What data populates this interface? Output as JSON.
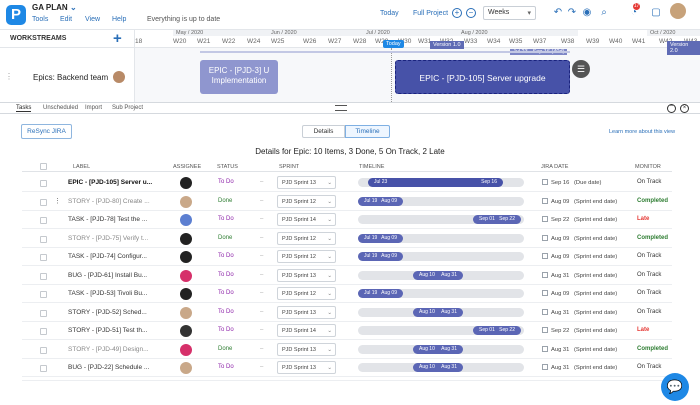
{
  "app": {
    "logo_letter": "P",
    "project": "GA PLAN",
    "project_caret": "⌄",
    "menus": [
      "Tools",
      "Edit",
      "View",
      "Help"
    ],
    "status": "Everything is up to date",
    "today_btn": "Today",
    "full_project_btn": "Full Project",
    "zoom_in": "+",
    "zoom_out": "−",
    "scale_select": "Weeks",
    "notif_count": "17"
  },
  "colors": {
    "accent": "#2a6fb8",
    "bar_dark": "#4752a8",
    "bar_light": "#8f96cf",
    "timeline_bar": "#5b66b5",
    "status_todo": "#8e24aa",
    "status_done": "#2e7d32",
    "late": "#e53935"
  },
  "gantt": {
    "workstreams_title": "WORKSTREAMS",
    "add": "+",
    "months": [
      {
        "label": "May / 2020"
      },
      {
        "label": "Jun / 2020"
      },
      {
        "label": "Jul / 2020"
      },
      {
        "label": "Aug / 2020"
      },
      {
        "label": "Oct / 2020"
      }
    ],
    "weeks": [
      "18",
      "W20",
      "W21",
      "W22",
      "W24",
      "W25",
      "W26",
      "W27",
      "W28",
      "W29",
      "W30",
      "W31",
      "W32",
      "W33",
      "W34",
      "W35",
      "W37",
      "W38",
      "W39",
      "W40",
      "W41",
      "W42",
      "W43"
    ],
    "today_marker": "Today",
    "version1": "Version 1.0",
    "version2": "Version 2.0",
    "range_label": "Jul 23 · Sep 16 (40d)",
    "epic_label": "Epics: Backend team",
    "bar_impl_line1": "EPIC - [PJD-3] U",
    "bar_impl_line2": "Implementation",
    "bar_server": "EPIC - [PJD-105] Server upgrade"
  },
  "tabs": [
    "Tasks",
    "Unscheduled",
    "Import",
    "Sub Project"
  ],
  "details": {
    "resync": "ReSync JIRA",
    "seg_details": "Details",
    "seg_timeline": "Timeline",
    "learn_more": "Learn more about this view",
    "heading": "Details for Epic: 10 Items, 3 Done, 5 On Track, 2 Late",
    "columns": [
      "LABEL",
      "ASSIGNEE",
      "STATUS",
      "SPRINT",
      "TIMELINE",
      "JIRA DATE",
      "MONITOR"
    ]
  },
  "rows": [
    {
      "label": "EPIC - [PJD-105] Server u...",
      "status": "To Do",
      "sprint": "PJD Sprint 13",
      "start": "Jul 23",
      "end": "Sep 16",
      "jira": "Sep 16",
      "jira_note": "(Due date)",
      "monitor": "On Track"
    },
    {
      "label": "STORY - [PJD-80] Create ...",
      "status": "Done",
      "sprint": "PJD Sprint 12",
      "start": "Jul 19",
      "end": "Aug 09",
      "jira": "Aug 09",
      "jira_note": "(Sprint end date)",
      "monitor": "Completed"
    },
    {
      "label": "TASK - [PJD-78] Test the ...",
      "status": "To Do",
      "sprint": "PJD Sprint 14",
      "start": "Sep 01",
      "end": "Sep 22",
      "jira": "Sep 22",
      "jira_note": "(Sprint end date)",
      "monitor": "Late"
    },
    {
      "label": "STORY - [PJD-75] Verify t...",
      "status": "Done",
      "sprint": "PJD Sprint 12",
      "start": "Jul 19",
      "end": "Aug 09",
      "jira": "Aug 09",
      "jira_note": "(Sprint end date)",
      "monitor": "Completed"
    },
    {
      "label": "TASK - [PJD-74] Configur...",
      "status": "To Do",
      "sprint": "PJD Sprint 12",
      "start": "Jul 19",
      "end": "Aug 09",
      "jira": "Aug 09",
      "jira_note": "(Sprint end date)",
      "monitor": "On Track"
    },
    {
      "label": "BUG - [PJD-61] Install Bu...",
      "status": "To Do",
      "sprint": "PJD Sprint 13",
      "start": "Aug 10",
      "end": "Aug 31",
      "jira": "Aug 31",
      "jira_note": "(Sprint end date)",
      "monitor": "On Track"
    },
    {
      "label": "TASK - [PJD-53] Tivoli Bu...",
      "status": "To Do",
      "sprint": "PJD Sprint 12",
      "start": "Jul 19",
      "end": "Aug 09",
      "jira": "Aug 09",
      "jira_note": "(Sprint end date)",
      "monitor": "On Track"
    },
    {
      "label": "STORY - [PJD-52] Sched...",
      "status": "To Do",
      "sprint": "PJD Sprint 13",
      "start": "Aug 10",
      "end": "Aug 31",
      "jira": "Aug 31",
      "jira_note": "(Sprint end date)",
      "monitor": "On Track"
    },
    {
      "label": "STORY - [PJD-51] Test th...",
      "status": "To Do",
      "sprint": "PJD Sprint 14",
      "start": "Sep 01",
      "end": "Sep 22",
      "jira": "Sep 22",
      "jira_note": "(Sprint end date)",
      "monitor": "Late"
    },
    {
      "label": "STORY - [PJD-49] Design...",
      "status": "Done",
      "sprint": "PJD Sprint 13",
      "start": "Aug 10",
      "end": "Aug 31",
      "jira": "Aug 31",
      "jira_note": "(Sprint end date)",
      "monitor": "Completed"
    },
    {
      "label": "BUG - [PJD-22] Schedule ...",
      "status": "To Do",
      "sprint": "PJD Sprint 13",
      "start": "Aug 10",
      "end": "Aug 31",
      "jira": "Aug 31",
      "jira_note": "(Sprint end date)",
      "monitor": "On Track"
    }
  ],
  "assignee_initial": "G"
}
